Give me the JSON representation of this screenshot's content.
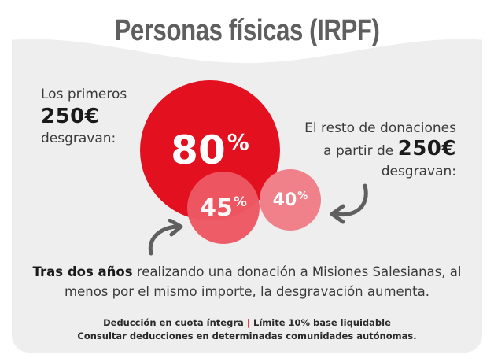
{
  "title": "Personas físicas (IRPF)",
  "left": {
    "line1": "Los primeros",
    "amount": "250€",
    "line3": "desgravan:"
  },
  "right": {
    "line1": "El resto de donaciones",
    "line2_prefix": "a partir de",
    "amount": "250€",
    "line3": "desgravan:"
  },
  "circles": {
    "first": {
      "value": "80",
      "unit": "%",
      "color": "#e3101f"
    },
    "after_two_years": {
      "value": "45",
      "unit": "%",
      "color": "#ee5864"
    },
    "rest_after_two_years": {
      "value": "40",
      "unit": "%",
      "color": "#f08089"
    }
  },
  "body": {
    "bold": "Tras dos años",
    "rest": " realizando una donación a Misiones Salesianas, al menos por el mismo importe, la desgravación aumenta."
  },
  "footer": {
    "line1_a": "Deducción en cuota íntegra",
    "separator": "|",
    "line1_b": "Límite 10% base liquidable",
    "line2": "Consultar deducciones en determinadas comunidades autónomas."
  },
  "icons": [
    "curved-arrow-icon",
    "curved-arrow-icon"
  ]
}
